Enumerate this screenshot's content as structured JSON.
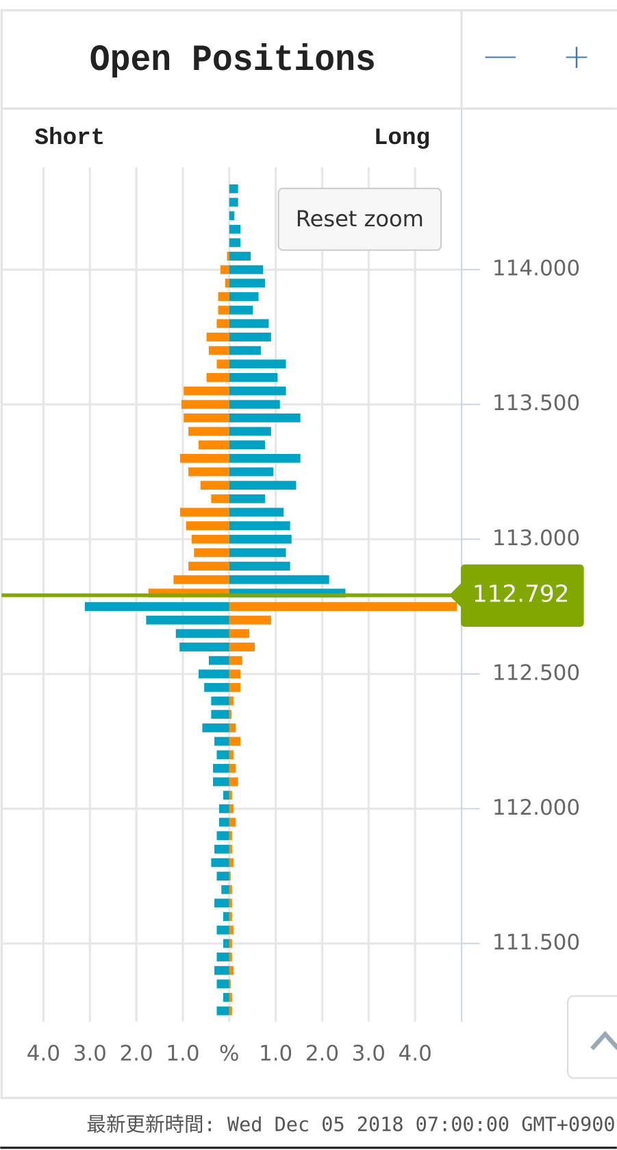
{
  "title": "Open Positions",
  "zoom_out": "—",
  "zoom_in": "+",
  "reset_zoom": "Reset zoom",
  "footer": "最新更新時間: Wed Dec 05 2018 07:00:00 GMT+0900",
  "chart_data": {
    "type": "butterfly-bar",
    "current_price": 112.792,
    "current_price_color": "#80a800",
    "y": [
      114.3,
      114.25,
      114.2,
      114.15,
      114.1,
      114.05,
      114.0,
      113.95,
      113.9,
      113.85,
      113.8,
      113.75,
      113.7,
      113.65,
      113.6,
      113.55,
      113.5,
      113.45,
      113.4,
      113.35,
      113.3,
      113.25,
      113.2,
      113.15,
      113.1,
      113.05,
      113.0,
      112.95,
      112.9,
      112.85,
      112.8,
      112.75,
      112.7,
      112.65,
      112.6,
      112.55,
      112.5,
      112.45,
      112.4,
      112.35,
      112.3,
      112.25,
      112.2,
      112.15,
      112.1,
      112.05,
      112.0,
      111.95,
      111.9,
      111.85,
      111.8,
      111.75,
      111.7,
      111.65,
      111.6,
      111.55,
      111.5,
      111.45,
      111.4,
      111.35,
      111.3,
      111.25
    ],
    "series": [
      {
        "name": "Short",
        "side": "left",
        "color_above_price": "#ff8a00",
        "color_below_price": "#00a3c4",
        "values": [
          0,
          0,
          0,
          0,
          0,
          0.05,
          0.19,
          0.09,
          0.24,
          0.24,
          0.27,
          0.49,
          0.44,
          0.27,
          0.49,
          0.98,
          1.03,
          0.98,
          0.88,
          0.66,
          1.06,
          0.88,
          0.62,
          0.39,
          1.06,
          0.93,
          0.81,
          0.76,
          0.88,
          1.2,
          1.74,
          3.11,
          1.79,
          1.15,
          1.07,
          0.44,
          0.66,
          0.54,
          0.39,
          0.39,
          0.58,
          0.32,
          0.27,
          0.35,
          0.35,
          0.13,
          0.22,
          0.22,
          0.27,
          0.32,
          0.39,
          0.27,
          0.17,
          0.32,
          0.13,
          0.27,
          0.13,
          0.27,
          0.32,
          0.27,
          0.13,
          0.27
        ]
      },
      {
        "name": "Long",
        "side": "right",
        "color_above_price": "#00a3c4",
        "color_below_price": "#ff8a00",
        "values": [
          0.19,
          0.19,
          0.11,
          0.24,
          0.24,
          0.46,
          0.73,
          0.77,
          0.63,
          0.51,
          0.85,
          0.9,
          0.68,
          1.22,
          1.04,
          1.22,
          1.09,
          1.53,
          0.9,
          0.77,
          1.53,
          0.95,
          1.44,
          0.77,
          1.17,
          1.31,
          1.34,
          1.22,
          1.31,
          2.15,
          2.5,
          4.9,
          0.9,
          0.43,
          0.55,
          0.28,
          0.24,
          0.24,
          0.09,
          0.05,
          0.14,
          0.24,
          0.09,
          0.14,
          0.19,
          0.06,
          0.09,
          0.14,
          0.06,
          0.06,
          0.09,
          0.03,
          0.06,
          0.06,
          0.06,
          0.09,
          0.06,
          0.06,
          0.09,
          0.03,
          0.06,
          0.06
        ]
      }
    ],
    "xlim": [
      -4.9,
      5
    ],
    "xticks": [
      {
        "value": -4,
        "label": "4.0"
      },
      {
        "value": -3,
        "label": "3.0"
      },
      {
        "value": -2,
        "label": "2.0"
      },
      {
        "value": -1,
        "label": "1.0"
      },
      {
        "value": 0,
        "label": "%"
      },
      {
        "value": 1,
        "label": "1.0"
      },
      {
        "value": 2,
        "label": "2.0"
      },
      {
        "value": 3,
        "label": "3.0"
      },
      {
        "value": 4,
        "label": "4.0"
      }
    ],
    "ylim": [
      111.21,
      114.38
    ],
    "yticks": [
      {
        "value": 111.5,
        "label": "111.500"
      },
      {
        "value": 112,
        "label": "112.000"
      },
      {
        "value": 112.5,
        "label": "112.500"
      },
      {
        "value": 113,
        "label": "113.000"
      },
      {
        "value": 113.5,
        "label": "113.500"
      },
      {
        "value": 114,
        "label": "114.000"
      }
    ],
    "grid": true
  }
}
